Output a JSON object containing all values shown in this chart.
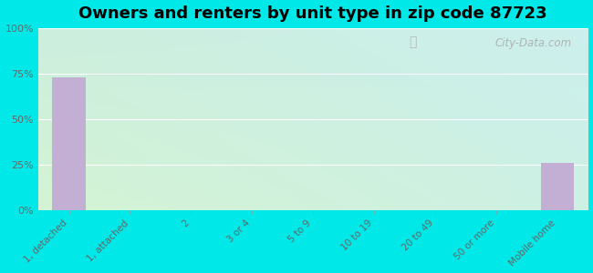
{
  "title": "Owners and renters by unit type in zip code 87723",
  "categories": [
    "1, detached",
    "1, attached",
    "2",
    "3 or 4",
    "5 to 9",
    "10 to 19",
    "20 to 49",
    "50 or more",
    "Mobile home"
  ],
  "values": [
    73,
    0,
    0,
    0,
    0,
    0,
    0,
    0,
    26
  ],
  "bar_color": "#c4afd4",
  "ylim": [
    0,
    100
  ],
  "yticks": [
    0,
    25,
    50,
    75,
    100
  ],
  "ytick_labels": [
    "0%",
    "25%",
    "50%",
    "75%",
    "100%"
  ],
  "background_outer": "#00e8e8",
  "bg_top_left": "#cceedd",
  "bg_top_right": "#cceeee",
  "bg_bottom_left": "#d8f5d8",
  "bg_bottom_right": "#d0f0e8",
  "title_fontsize": 13,
  "tick_label_color": "#666666",
  "watermark": "City-Data.com",
  "grid_color": "#ffffff"
}
